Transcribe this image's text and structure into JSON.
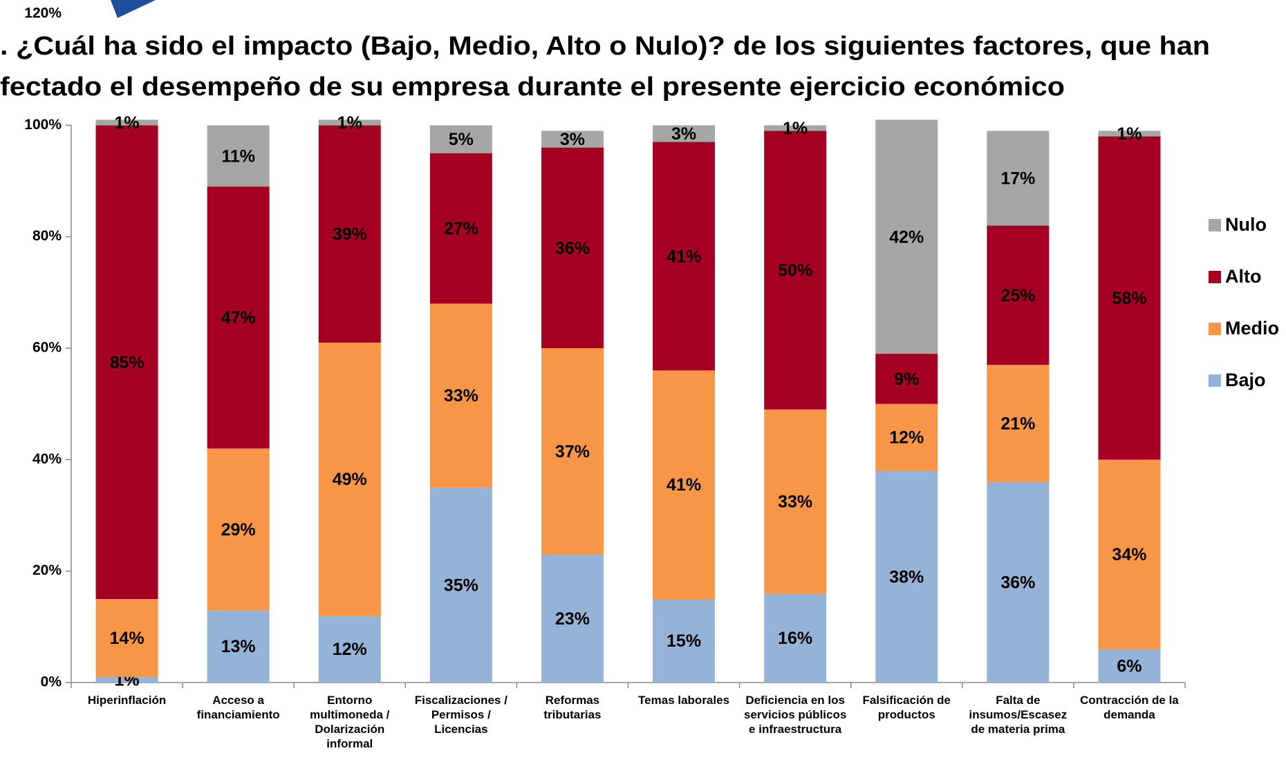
{
  "chart_data": {
    "type": "stacked_bar",
    "title_lines": [
      ". ¿Cuál ha sido el impacto (Bajo, Medio, Alto o Nulo)? de los siguientes factores, que han",
      "fectado el desempeño de su empresa durante el presente ejercicio económico"
    ],
    "categories": [
      "Hiperinflación",
      "Acceso a financiamiento",
      "Entorno multimoneda / Dolarización informal",
      "Fiscalizaciones / Permisos / Licencias",
      "Reformas tributarias",
      "Temas laborales",
      "Deficiencia en los servicios públicos e infraestructura",
      "Falsificación de productos",
      "Falta de insumos/Escasez de materia prima",
      "Contracción de la demanda"
    ],
    "series": [
      {
        "name": "Bajo",
        "color": "#95b3d7",
        "values": [
          1,
          13,
          12,
          35,
          23,
          15,
          16,
          38,
          36,
          6
        ],
        "value_labels": [
          "1%",
          "13%",
          "12%",
          "35%",
          "23%",
          "15%",
          "16%",
          "38%",
          "36%",
          "6%"
        ]
      },
      {
        "name": "Medio",
        "color": "#f79646",
        "values": [
          14,
          29,
          49,
          33,
          37,
          41,
          33,
          12,
          21,
          34
        ],
        "value_labels": [
          "14%",
          "29%",
          "49%",
          "33%",
          "37%",
          "41%",
          "33%",
          "12%",
          "21%",
          "34%"
        ]
      },
      {
        "name": "Alto",
        "color": "#a50021",
        "values": [
          85,
          47,
          39,
          27,
          36,
          41,
          50,
          9,
          25,
          58
        ],
        "value_labels": [
          "85%",
          "47%",
          "39%",
          "27%",
          "36%",
          "41%",
          "50%",
          "9%",
          "25%",
          "58%"
        ]
      },
      {
        "name": "Nulo",
        "color": "#a6a6a6",
        "values": [
          1,
          11,
          1,
          5,
          3,
          3,
          1,
          42,
          17,
          1
        ],
        "value_labels": [
          "1%",
          "11%",
          "1%",
          "5%",
          "3%",
          "3%",
          "1%",
          "42%",
          "17%",
          "1%"
        ]
      }
    ],
    "ylim": [
      0,
      120
    ],
    "yticks": [
      {
        "value": 0,
        "label": "0%"
      },
      {
        "value": 20,
        "label": "20%"
      },
      {
        "value": 40,
        "label": "40%"
      },
      {
        "value": 60,
        "label": "60%"
      },
      {
        "value": 80,
        "label": "80%"
      },
      {
        "value": 100,
        "label": "100%"
      },
      {
        "value": 120,
        "label": "120%"
      }
    ],
    "legend": "right"
  }
}
